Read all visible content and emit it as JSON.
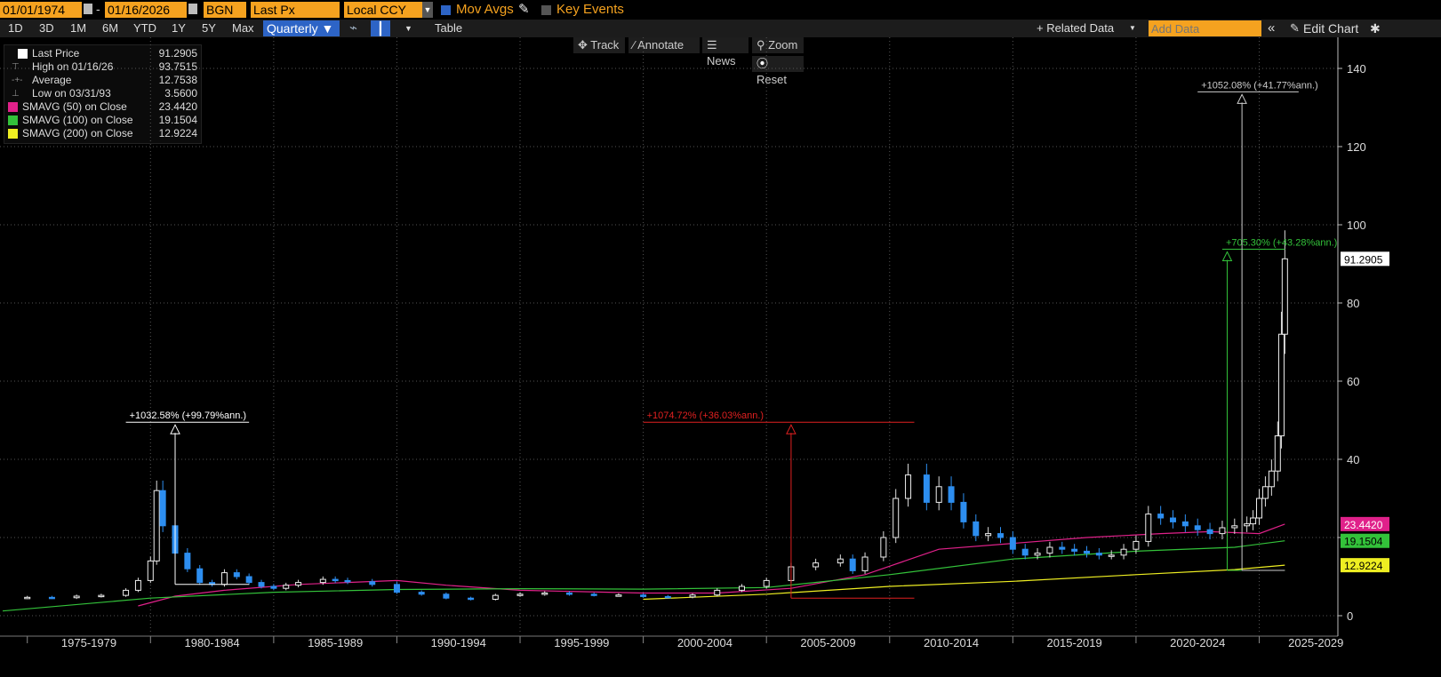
{
  "toolbar": {
    "start_date": "01/01/1974",
    "end_date": "01/16/2026",
    "ticker": "BGN",
    "field": "Last Px",
    "currency": "Local CCY",
    "mov_avgs": "Mov Avgs",
    "key_events": "Key Events"
  },
  "periods": [
    "1D",
    "3D",
    "1M",
    "6M",
    "YTD",
    "1Y",
    "5Y",
    "Max"
  ],
  "frequency": "Quarterly ▼",
  "table_label": "Table",
  "related_data": "+ Related Data",
  "add_data_placeholder": "Add Data",
  "edit_chart": "Edit Chart",
  "chart_tools": {
    "track": "Track",
    "annotate": "Annotate",
    "news": "News",
    "zoom": "Zoom",
    "reset": "Reset"
  },
  "legend": [
    {
      "label": "Last Price",
      "value": "91.2905",
      "color": "#ffffff"
    },
    {
      "label": "High on 01/16/26",
      "value": "93.7515"
    },
    {
      "label": "Average",
      "value": "12.7538"
    },
    {
      "label": "Low on 03/31/93",
      "value": "3.5600"
    },
    {
      "label": "SMAVG (50)  on Close",
      "value": "23.4420",
      "color": "#e0218a"
    },
    {
      "label": "SMAVG (100)  on Close",
      "value": "19.1504",
      "color": "#33c23a"
    },
    {
      "label": "SMAVG (200)  on Close",
      "value": "12.9224",
      "color": "#eeee22"
    }
  ],
  "colors": {
    "up": "#ffffff",
    "down": "#2d8ef0",
    "sma50": "#e0218a",
    "sma100": "#33c23a",
    "sma200": "#eeee22",
    "accent": "#f5a21f"
  },
  "chart_data": {
    "type": "candlestick",
    "frequency": "Quarterly",
    "ylim": [
      0,
      145
    ],
    "yticks": [
      0,
      20,
      40,
      60,
      80,
      100,
      120,
      140
    ],
    "x_period_labels": [
      "1975-1979",
      "1980-1984",
      "1985-1989",
      "1990-1994",
      "1995-1999",
      "2000-2004",
      "2005-2009",
      "2010-2014",
      "2015-2019",
      "2020-2024",
      "2025-2029"
    ],
    "x_range": [
      1974.0,
      2026.1
    ],
    "price_series": {
      "points": [
        [
          1974.0,
          4.6
        ],
        [
          1975.0,
          4.7
        ],
        [
          1976.0,
          4.6
        ],
        [
          1977.0,
          5.0
        ],
        [
          1978.0,
          5.2
        ],
        [
          1979.0,
          6.5
        ],
        [
          1979.5,
          9.0
        ],
        [
          1980.0,
          14.0
        ],
        [
          1980.25,
          32.0
        ],
        [
          1980.5,
          23.0
        ],
        [
          1981.0,
          16.0
        ],
        [
          1981.5,
          12.0
        ],
        [
          1982.0,
          8.5
        ],
        [
          1982.5,
          8.0
        ],
        [
          1983.0,
          11.0
        ],
        [
          1983.5,
          10.0
        ],
        [
          1984.0,
          8.5
        ],
        [
          1984.5,
          7.5
        ],
        [
          1985.0,
          7.0
        ],
        [
          1985.5,
          7.8
        ],
        [
          1986.0,
          8.5
        ],
        [
          1987.0,
          9.3
        ],
        [
          1987.5,
          9.0
        ],
        [
          1988.0,
          8.7
        ],
        [
          1989.0,
          8.0
        ],
        [
          1990.0,
          6.0
        ],
        [
          1991.0,
          5.5
        ],
        [
          1992.0,
          4.5
        ],
        [
          1993.0,
          4.2
        ],
        [
          1994.0,
          5.2
        ],
        [
          1995.0,
          5.5
        ],
        [
          1996.0,
          5.8
        ],
        [
          1997.0,
          5.5
        ],
        [
          1998.0,
          5.3
        ],
        [
          1999.0,
          5.3
        ],
        [
          2000.0,
          4.9
        ],
        [
          2001.0,
          4.8
        ],
        [
          2002.0,
          5.3
        ],
        [
          2003.0,
          6.5
        ],
        [
          2004.0,
          7.5
        ],
        [
          2005.0,
          9.0
        ],
        [
          2006.0,
          12.5
        ],
        [
          2007.0,
          13.5
        ],
        [
          2008.0,
          14.5
        ],
        [
          2008.5,
          11.5
        ],
        [
          2009.0,
          15.0
        ],
        [
          2009.75,
          20.0
        ],
        [
          2010.25,
          30.0
        ],
        [
          2010.75,
          36.0
        ],
        [
          2011.5,
          29.0
        ],
        [
          2012.0,
          33.0
        ],
        [
          2012.5,
          29.0
        ],
        [
          2013.0,
          24.0
        ],
        [
          2013.5,
          20.5
        ],
        [
          2014.0,
          21.0
        ],
        [
          2014.5,
          20.0
        ],
        [
          2015.0,
          17.0
        ],
        [
          2015.5,
          15.5
        ],
        [
          2016.0,
          16.0
        ],
        [
          2016.5,
          17.5
        ],
        [
          2017.0,
          17.0
        ],
        [
          2017.5,
          16.5
        ],
        [
          2018.0,
          16.0
        ],
        [
          2018.5,
          15.5
        ],
        [
          2019.0,
          15.5
        ],
        [
          2019.5,
          17.0
        ],
        [
          2020.0,
          19.0
        ],
        [
          2020.5,
          26.0
        ],
        [
          2021.0,
          25.0
        ],
        [
          2021.5,
          24.0
        ],
        [
          2022.0,
          23.0
        ],
        [
          2022.5,
          22.0
        ],
        [
          2023.0,
          21.0
        ],
        [
          2023.5,
          22.5
        ],
        [
          2024.0,
          23.0
        ],
        [
          2024.5,
          23.5
        ],
        [
          2024.75,
          25.0
        ],
        [
          2025.0,
          30.0
        ],
        [
          2025.25,
          33.0
        ],
        [
          2025.5,
          37.0
        ],
        [
          2025.75,
          46.0
        ],
        [
          2025.9,
          72.0
        ],
        [
          2026.04,
          91.2905
        ]
      ],
      "last": 91.2905,
      "high": 93.7515,
      "average": 12.7538,
      "low": 3.56
    },
    "sma": [
      {
        "period": 50,
        "value": 23.442,
        "points": [
          [
            1979.5,
            2.5
          ],
          [
            1981,
            5
          ],
          [
            1983,
            6.5
          ],
          [
            1986,
            8
          ],
          [
            1990,
            9.0
          ],
          [
            1992,
            7.8
          ],
          [
            1995,
            6.5
          ],
          [
            2000,
            5.8
          ],
          [
            2003,
            5.8
          ],
          [
            2006,
            7
          ],
          [
            2009,
            10.5
          ],
          [
            2012,
            17
          ],
          [
            2015,
            18.5
          ],
          [
            2018,
            20
          ],
          [
            2021,
            21
          ],
          [
            2023,
            21.5
          ],
          [
            2025,
            21.0
          ],
          [
            2026.04,
            23.442
          ]
        ]
      },
      {
        "period": 100,
        "value": 19.1504,
        "points": [
          [
            1974,
            1.2
          ],
          [
            1980,
            4.5
          ],
          [
            1985,
            6.0
          ],
          [
            1990,
            6.7
          ],
          [
            1995,
            6.9
          ],
          [
            2000,
            6.8
          ],
          [
            2005,
            7.2
          ],
          [
            2010,
            10.5
          ],
          [
            2015,
            14.5
          ],
          [
            2020,
            16.5
          ],
          [
            2024,
            17.5
          ],
          [
            2026.04,
            19.1504
          ]
        ]
      },
      {
        "period": 200,
        "value": 12.9224,
        "points": [
          [
            2000,
            4.2
          ],
          [
            2005,
            5.5
          ],
          [
            2010,
            7.5
          ],
          [
            2015,
            8.8
          ],
          [
            2020,
            10.5
          ],
          [
            2024,
            11.8
          ],
          [
            2026.04,
            12.9224
          ]
        ]
      }
    ],
    "annotations": [
      {
        "text": "+1032.58% (+99.79%ann.)",
        "color": "#ffffff",
        "x_start": 1979.0,
        "x_end": 1984.0,
        "y_level": 49.5,
        "arrow_x": 1981.0,
        "arrow_base": 8.0,
        "base_x_end": 1984.0
      },
      {
        "text": "+1074.72% (+36.03%ann.)",
        "color": "#e02020",
        "x_start": 2000.0,
        "x_end": 2011.0,
        "y_level": 49.5,
        "arrow_x": 2006.0,
        "arrow_base": 4.5,
        "base_x_end": 2011.0
      },
      {
        "text": "+705.30% (+43.28%ann.)",
        "color": "#33c23a",
        "x_start": 2023.5,
        "x_end": 2026.04,
        "y_level": 93.75,
        "arrow_x": 2023.7,
        "arrow_base": 11.6,
        "base_x_end": 2026.04
      },
      {
        "text": "+1052.08% (+41.77%ann.)",
        "color": "#cccccc",
        "x_start": 2022.5,
        "x_end": 2026.6,
        "y_level": 134.0,
        "arrow_x": 2024.3,
        "arrow_base": 11.6,
        "base_x_end": 2026.04
      }
    ],
    "right_labels": [
      {
        "value": "91.2905",
        "y": 91.2905,
        "bg": "#ffffff",
        "fg": "#000000"
      },
      {
        "value": "23.4420",
        "y": 23.442,
        "bg": "#e0218a",
        "fg": "#ffffff"
      },
      {
        "value": "19.1504",
        "y": 19.1504,
        "bg": "#33c23a",
        "fg": "#000000"
      },
      {
        "value": "12.9224",
        "y": 12.9224,
        "bg": "#eeee22",
        "fg": "#000000"
      }
    ]
  }
}
